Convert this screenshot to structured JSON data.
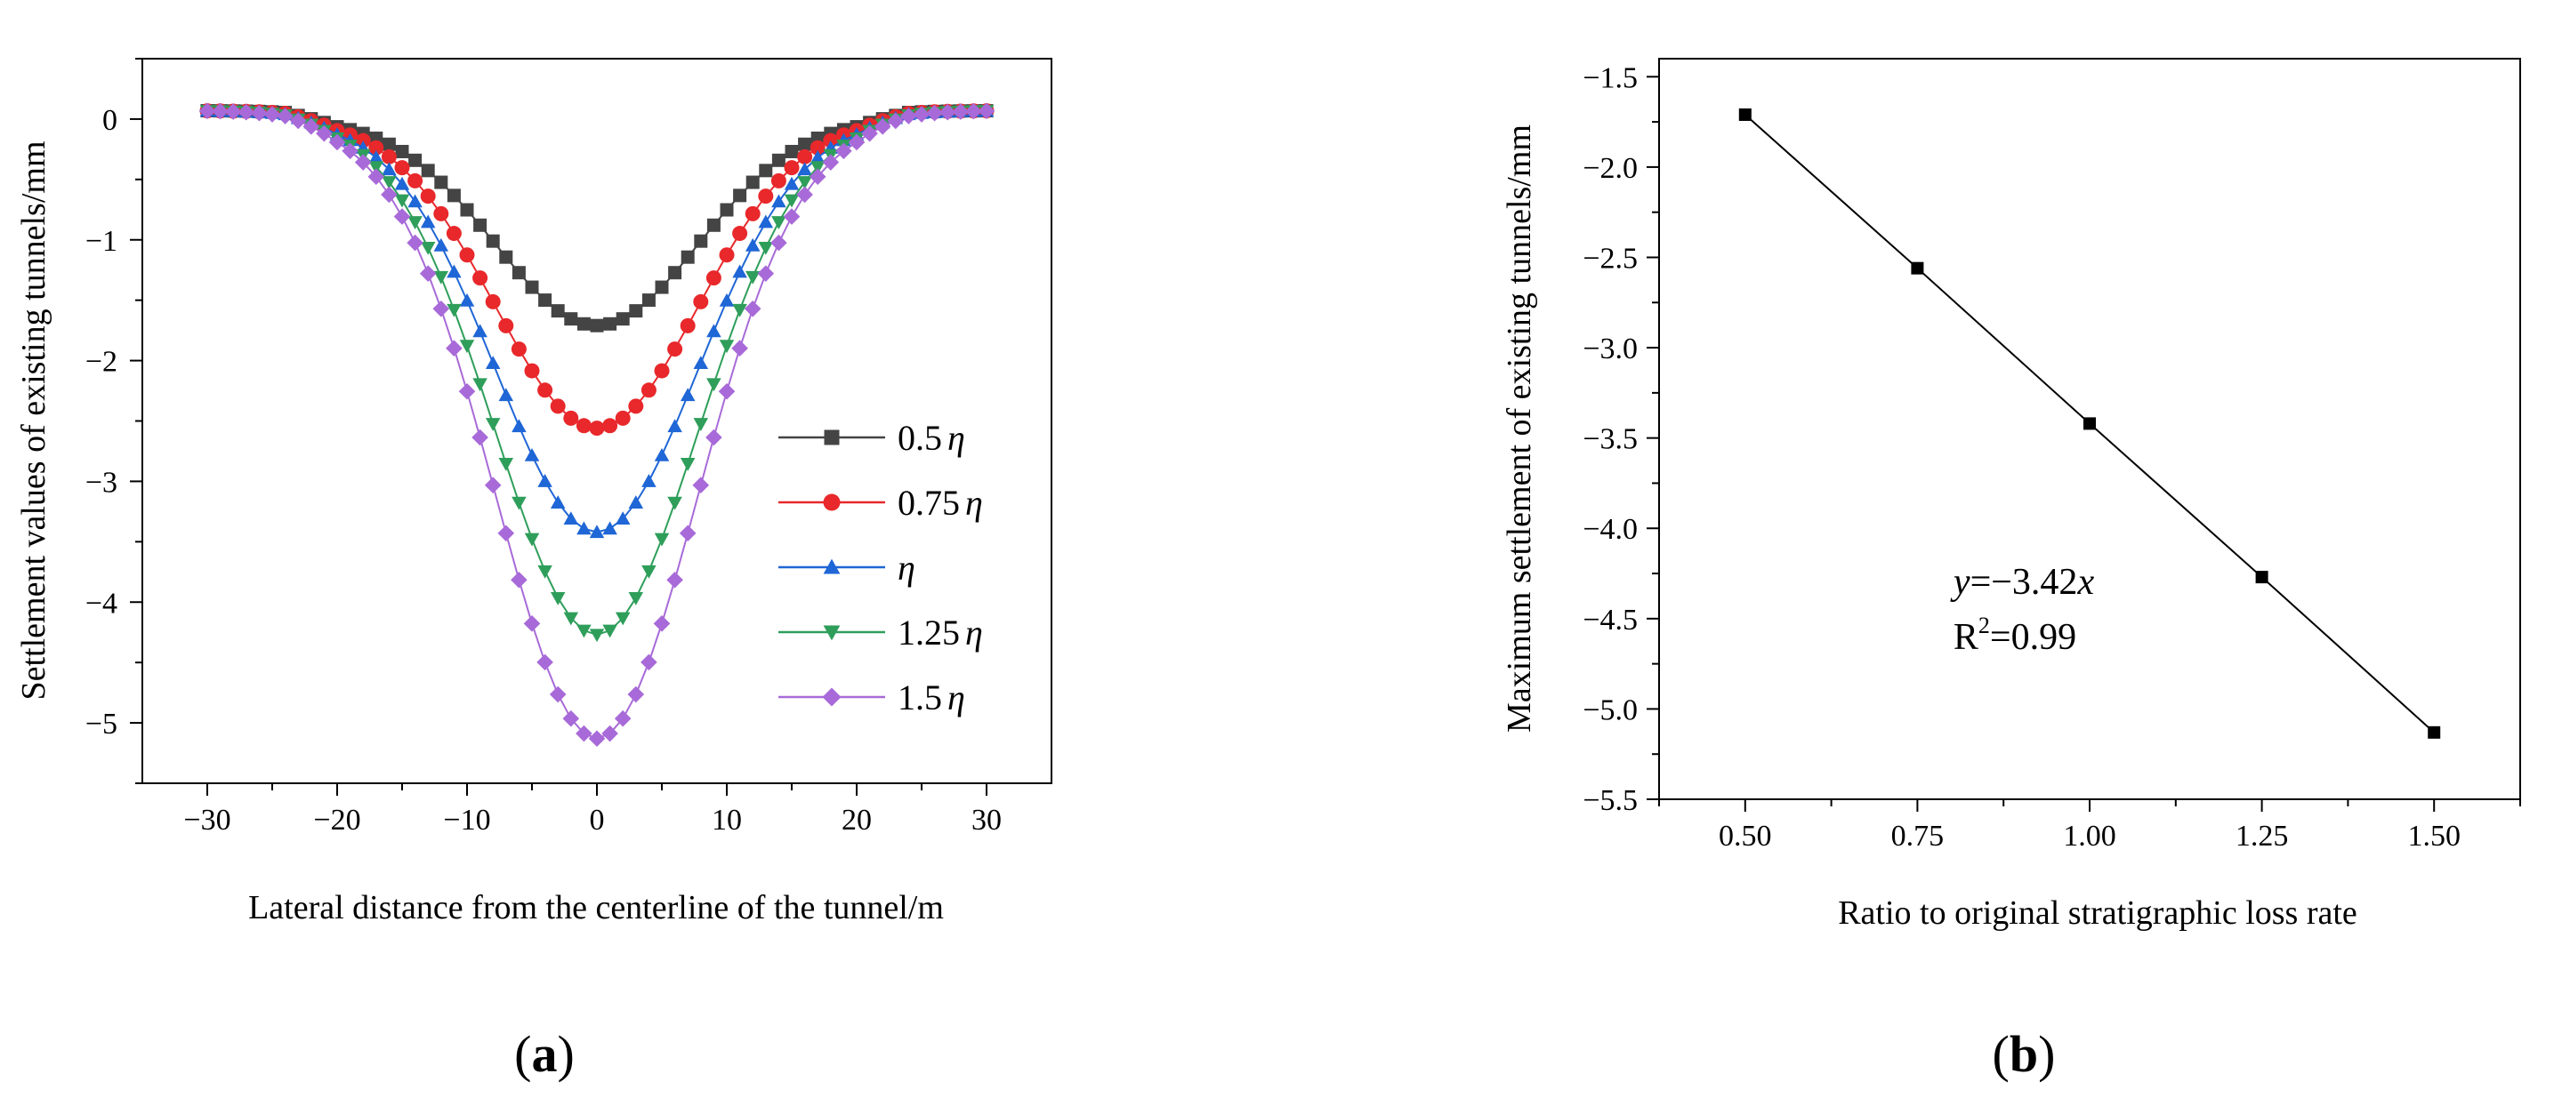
{
  "chart_data": [
    {
      "panel": "(a)",
      "type": "line",
      "xlabel": "Lateral distance from the centerline of the tunnel/m",
      "ylabel": "Settlement values of existing tunnels/mm",
      "xlim": [
        -35,
        35
      ],
      "ylim": [
        -5.5,
        0.5
      ],
      "xticks": [
        -30,
        -20,
        -10,
        0,
        10,
        20,
        30
      ],
      "yticks": [
        0,
        -1,
        -2,
        -3,
        -4,
        -5
      ],
      "xtick_labels": [
        "−30",
        "−20",
        "−10",
        "0",
        "10",
        "20",
        "30"
      ],
      "ytick_labels": [
        "0",
        "−1",
        "−2",
        "−3",
        "−4",
        "−5"
      ],
      "x": [
        -30,
        -29,
        -28,
        -27,
        -26,
        -25,
        -24,
        -23,
        -22,
        -21,
        -20,
        -19,
        -18,
        -17,
        -16,
        -15,
        -14,
        -13,
        -12,
        -11,
        -10,
        -9,
        -8,
        -7,
        -6,
        -5,
        -4,
        -3,
        -2,
        -1,
        0,
        1,
        2,
        3,
        4,
        5,
        6,
        7,
        8,
        9,
        10,
        11,
        12,
        13,
        14,
        15,
        16,
        17,
        18,
        19,
        20,
        21,
        22,
        23,
        24,
        25,
        26,
        27,
        28,
        29,
        30
      ],
      "legend_position": "center-right",
      "series": [
        {
          "name": "0.5",
          "suffix": "η",
          "color": "#444444",
          "marker": "square",
          "peak": -1.71,
          "width": 7.8,
          "offset": 0.07
        },
        {
          "name": "0.75",
          "suffix": "η",
          "color": "#e8282b",
          "marker": "circle",
          "peak": -2.56,
          "width": 7.8,
          "offset": 0.07
        },
        {
          "name": "",
          "suffix": "η",
          "color": "#1f66d6",
          "marker": "triangle-up",
          "peak": -3.42,
          "width": 7.8,
          "offset": 0.07
        },
        {
          "name": "1.25",
          "suffix": "η",
          "color": "#2e9e5a",
          "marker": "triangle-down",
          "peak": -4.27,
          "width": 7.8,
          "offset": 0.07
        },
        {
          "name": "1.5",
          "suffix": "η",
          "color": "#a86ad8",
          "marker": "diamond",
          "peak": -5.13,
          "width": 7.8,
          "offset": 0.07
        }
      ]
    },
    {
      "panel": "(b)",
      "type": "line",
      "xlabel": "Ratio to original stratigraphic loss rate",
      "ylabel": "Maximum settlement of existing tunnels/mm",
      "xlim": [
        0.375,
        1.625
      ],
      "ylim": [
        -5.5,
        -1.4
      ],
      "xticks": [
        0.5,
        0.75,
        1.0,
        1.25,
        1.5
      ],
      "yticks": [
        -1.5,
        -2.0,
        -2.5,
        -3.0,
        -3.5,
        -4.0,
        -4.5,
        -5.0,
        -5.5
      ],
      "xtick_labels": [
        "0.50",
        "0.75",
        "1.00",
        "1.25",
        "1.50"
      ],
      "ytick_labels": [
        "−1.5",
        "−2.0",
        "−2.5",
        "−3.0",
        "−3.5",
        "−4.0",
        "−4.5",
        "−5.0",
        "−5.5"
      ],
      "x": [
        0.5,
        0.75,
        1.0,
        1.25,
        1.5
      ],
      "values": [
        -1.71,
        -2.56,
        -3.42,
        -4.27,
        -5.13
      ],
      "color": "#000000",
      "marker": "square",
      "annotation": {
        "equation_var": "y",
        "equation_rest": "=−3.42",
        "equation_x": "x",
        "r2_prefix": "R",
        "r2_sup": "2",
        "r2_rest": "=0.99"
      }
    }
  ]
}
